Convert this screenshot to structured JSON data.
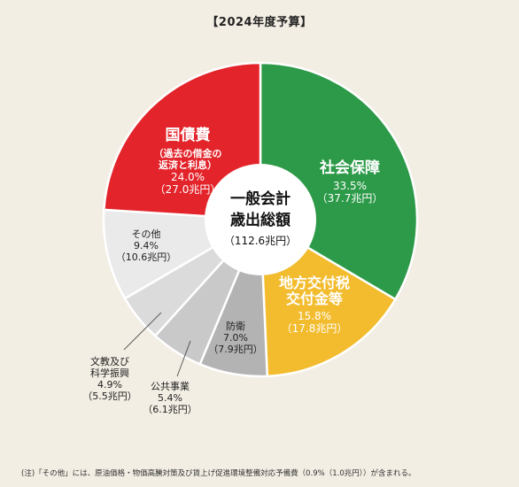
{
  "note": "(注)「その他」には、原油価格・物価高騰対策及び賃上げ促進環境整備対応予備費（0.9%（1.0兆円））が含まれる。",
  "chart_data": {
    "type": "pie",
    "title": "【2024年度予算】",
    "center_label": [
      "一般会計",
      "歳出総額",
      "（112.6兆円）"
    ],
    "total_amount": "112.6兆円",
    "slices": [
      {
        "name": "社会保障",
        "name_lines": [
          "社会保障"
        ],
        "percent": 33.5,
        "amount": 37.7,
        "percent_label": "33.5%",
        "amount_label": "（37.7兆円）",
        "color": "#2c9a48",
        "text_color": "#ffffff"
      },
      {
        "name": "地方交付税交付金等",
        "name_lines": [
          "地方交付税",
          "交付金等"
        ],
        "percent": 15.8,
        "amount": 17.8,
        "percent_label": "15.8%",
        "amount_label": "（17.8兆円）",
        "color": "#f2bc2e",
        "text_color": "#ffffff"
      },
      {
        "name": "防衛",
        "name_lines": [
          "防衛"
        ],
        "percent": 7.0,
        "amount": 7.9,
        "percent_label": "7.0%",
        "amount_label": "（7.9兆円）",
        "color": "#b3b3b3",
        "text_color": "#222222"
      },
      {
        "name": "公共事業",
        "name_lines": [
          "公共事業"
        ],
        "percent": 5.4,
        "amount": 6.1,
        "percent_label": "5.4%",
        "amount_label": "（6.1兆円）",
        "color": "#c9c9c9",
        "text_color": "#222222"
      },
      {
        "name": "文教及び科学振興",
        "name_lines": [
          "文教及び",
          "科学振興"
        ],
        "percent": 4.9,
        "amount": 5.5,
        "percent_label": "4.9%",
        "amount_label": "（5.5兆円）",
        "color": "#dbdbdb",
        "text_color": "#222222"
      },
      {
        "name": "その他",
        "name_lines": [
          "その他"
        ],
        "percent": 9.4,
        "amount": 10.6,
        "percent_label": "9.4%",
        "amount_label": "（10.6兆円）",
        "color": "#eaeaea",
        "text_color": "#222222"
      },
      {
        "name": "国債費",
        "name_lines": [
          "国債費"
        ],
        "sub_lines": [
          "（過去の借金の",
          "返済と利息）"
        ],
        "percent": 24.0,
        "amount": 27.0,
        "percent_label": "24.0%",
        "amount_label": "（27.0兆円）",
        "color": "#e3242b",
        "text_color": "#ffffff"
      }
    ]
  }
}
